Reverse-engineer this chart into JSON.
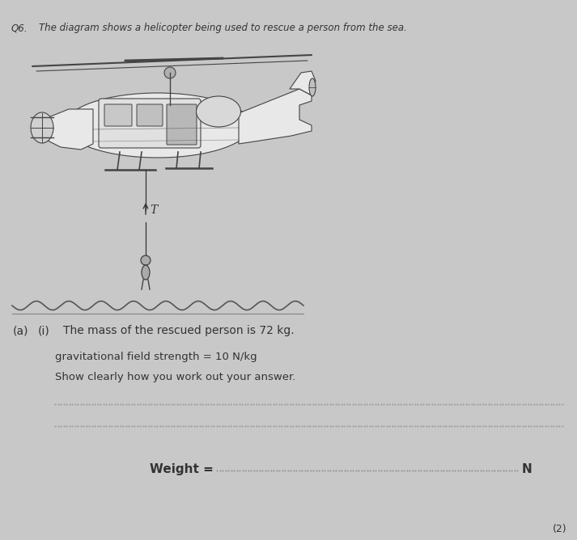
{
  "bg_color": "#c8c8c8",
  "page_color": "#d4d4d4",
  "q_number": "Q6.",
  "q_text": "The diagram shows a helicopter being used to rescue a person from the sea.",
  "part_a_label": "(a)",
  "part_i_label": "(i)",
  "part_a_text": "The mass of the rescued person is 72 kg.",
  "grav_text": "gravitational field strength = 10 N/kg",
  "show_text": "Show clearly how you work out your answer.",
  "weight_label": "Weight = ",
  "weight_end": "N",
  "marks": "(2)",
  "T_label": "T",
  "dot_line_color": "#666666",
  "text_color": "#333333",
  "heli_color": "#e8e8e8",
  "heli_edge": "#444444",
  "wave_color": "#555555"
}
